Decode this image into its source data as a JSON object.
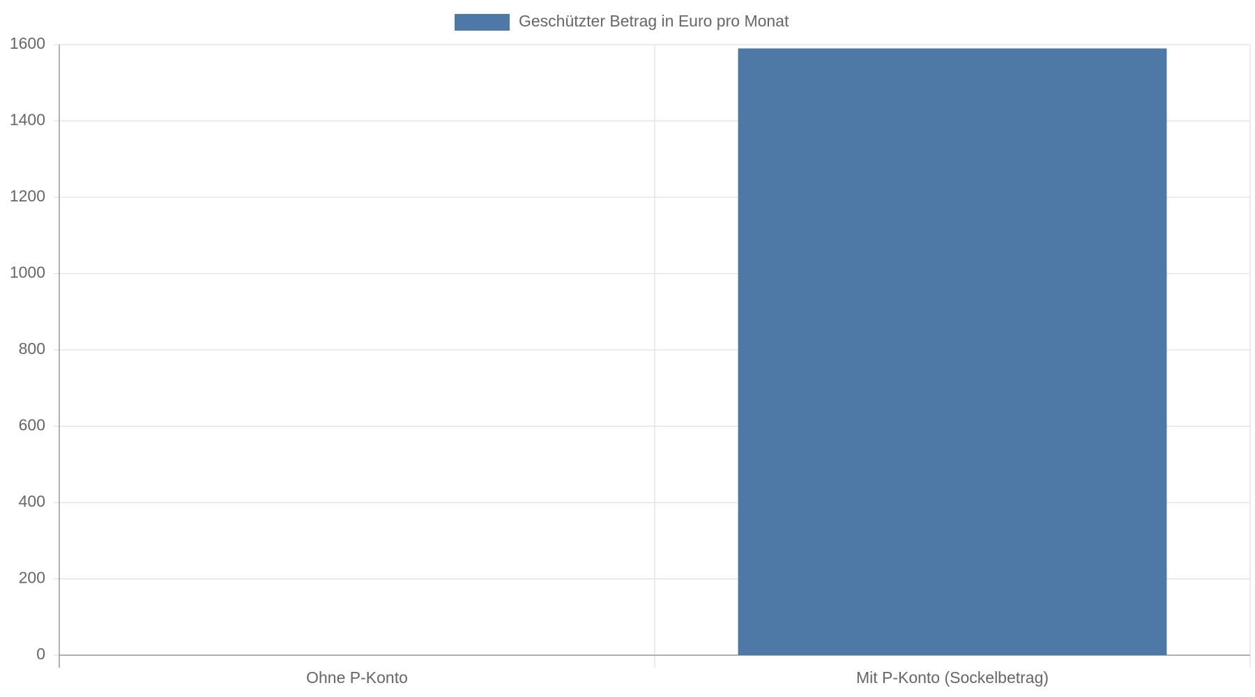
{
  "chart_data": {
    "type": "bar",
    "categories": [
      "Ohne P-Konto",
      "Mit P-Konto (Sockelbetrag)"
    ],
    "series": [
      {
        "name": "Geschützter Betrag in Euro pro Monat",
        "color": "#4e79a7",
        "values": [
          0,
          1590
        ]
      }
    ],
    "ylim": [
      0,
      1600
    ],
    "yticks": [
      0,
      200,
      400,
      600,
      800,
      1000,
      1200,
      1400,
      1600
    ],
    "grid": true,
    "legend": "top"
  }
}
